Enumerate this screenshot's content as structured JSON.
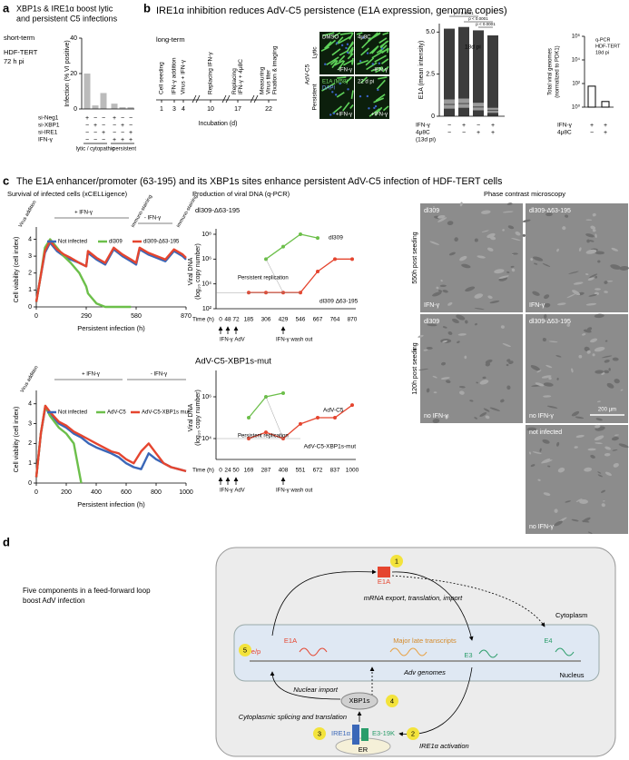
{
  "panel_labels": [
    "a",
    "b",
    "c",
    "d"
  ],
  "panel_a": {
    "title": [
      "XBP1s & IRE1α boost lytic",
      "and persistent C5 infections"
    ],
    "notes": [
      "short-term",
      "HDF-TERT",
      "72 h pi"
    ]
  },
  "panel_b": {
    "title": "IRE1α inhibition reduces AdV-C5 persistence (E1A expression, genome copies)",
    "timeline": {
      "label": "long-term",
      "days": [
        1,
        3,
        4,
        10,
        17,
        22
      ],
      "events": [
        [
          "Cell seeding"
        ],
        [
          "IFN-γ addition"
        ],
        [
          "Virus + IFN-γ"
        ],
        [
          "Replacing IFN-γ"
        ],
        [
          "Replacing",
          "IFN-γ + 4μ8C"
        ],
        [
          "Measuring",
          "Virus titer",
          "Fixation & imaging"
        ]
      ],
      "axis_label": "Incubation (d)"
    },
    "images": {
      "row_labels": [
        "Lytic",
        "Persistent"
      ],
      "virus": "AdV-C5",
      "tiles": [
        [
          "DMSO",
          "-IFN-γ"
        ],
        [
          "4μ8C",
          "-IFN-γ"
        ],
        [
          "E1A (M58)",
          "DAPI",
          "+IFN-γ"
        ],
        [
          "22 d pi",
          "+IFN-γ"
        ]
      ]
    }
  },
  "panel_c": {
    "title": "The E1A enhancer/promoter (63-195) and its XBP1s sites enhance persistent AdV-C5 infection of HDF-TERT cells",
    "headings": [
      "Survival of infected cells (xCELLigence)",
      "Production of viral DNA (q-PCR)",
      "Phase contrast microscopy"
    ],
    "microscopy": {
      "row_labels": [
        "550h post seeding",
        "120h post seeding"
      ],
      "tiles": [
        [
          "dl309",
          "IFN-γ"
        ],
        [
          "dl309-Δ63-195",
          "IFN-γ"
        ],
        [
          "dl309",
          "no IFN-γ"
        ],
        [
          "dl309-Δ63-195",
          "no IFN-γ"
        ],
        [
          "not infected",
          "no IFN-γ"
        ]
      ],
      "scale_bar": "200 µm"
    }
  },
  "panel_d": {
    "caption": [
      "Five components in a feed-forward loop",
      "boost AdV infection"
    ],
    "labels": [
      "E1A",
      "mRNA export, translation, import",
      "Cytoplasm",
      "e/p",
      "E1A",
      "Major late transcripts",
      "E3",
      "E4",
      "Adv genomes",
      "Nucleus",
      "Nuclear import",
      "XBP1s",
      "Cytoplasmic splicing and translation",
      "IRE1α",
      "E3-19K",
      "IRE1α activation",
      "ER"
    ],
    "steps": [
      "1",
      "2",
      "3",
      "4",
      "5"
    ]
  },
  "chart_data": [
    {
      "type": "bar",
      "ylabel": "Infection (% VI positive)",
      "values": [
        20,
        2,
        9,
        3,
        1,
        1
      ],
      "color": "#bbbbbb",
      "ylim": [
        0,
        40
      ],
      "yticks": [
        0,
        20,
        40
      ],
      "conditions": [
        {
          "label": "si-Neg1",
          "signs": [
            "+",
            "−",
            "−",
            "+",
            "−",
            "−"
          ]
        },
        {
          "label": "si-XBP1",
          "signs": [
            "−",
            "+",
            "−",
            "−",
            "+",
            "−"
          ]
        },
        {
          "label": "si-IRE1",
          "signs": [
            "−",
            "−",
            "+",
            "−",
            "−",
            "+"
          ]
        },
        {
          "label": "IFN-γ",
          "signs": [
            "−",
            "−",
            "−",
            "+",
            "+",
            "+"
          ]
        }
      ],
      "groups": [
        "lytic / cytopathic",
        "persistent"
      ]
    },
    {
      "type": "box",
      "ylabel": "E1A (mean intensity)",
      "median": [
        0.7,
        0.75,
        0.55,
        0.35
      ],
      "q1": [
        0.45,
        0.5,
        0.35,
        0.2
      ],
      "q3": [
        1.0,
        1.05,
        0.8,
        0.5
      ],
      "max": [
        5.2,
        5.3,
        5.1,
        4.8
      ],
      "ylim": [
        0,
        5.5
      ],
      "yticks": [
        0,
        2.5,
        {
          "value": 5,
          "label": "5.0"
        }
      ],
      "rows": [
        {
          "label": "IFN-γ",
          "signs": [
            "−",
            "+",
            "−",
            "+"
          ]
        },
        {
          "label": "4μ8C",
          "signs": [
            "−",
            "−",
            "+",
            "+"
          ]
        }
      ],
      "note": "(13d pi)",
      "annotation": "18d pi",
      "p_values": [
        "p < 0.0001",
        "p < 0.0001",
        "p < 0.0001"
      ]
    },
    {
      "type": "bar",
      "log_y": true,
      "ylabel": [
        "Total viral genomes",
        "(normalized to PDK1)"
      ],
      "values": [
        60,
        3
      ],
      "color": "#ffffff",
      "ylim": [
        1,
        1000000
      ],
      "yticks": [
        {
          "value": 1,
          "label": "10⁰"
        },
        {
          "value": 100,
          "label": "10²"
        },
        {
          "value": 10000,
          "label": "10⁴"
        },
        {
          "value": 1000000,
          "label": "10⁶"
        }
      ],
      "rows": [
        {
          "label": "IFN-γ",
          "signs": [
            "+",
            "+"
          ]
        },
        {
          "label": "4μ8C",
          "signs": [
            "−",
            "+"
          ]
        }
      ],
      "notes": [
        "q-PCR",
        "HDF-TERT",
        "18d pi"
      ]
    },
    {
      "type": "line",
      "ylabel": "Cell viability (cell index)",
      "xlabel": "Persistent infection (h)",
      "x": [
        0,
        20,
        50,
        80,
        120,
        160,
        200,
        250,
        290,
        300,
        350,
        400,
        450,
        500,
        550,
        580,
        600,
        650,
        700,
        750,
        800,
        850,
        870
      ],
      "series": [
        {
          "name": "Not infected",
          "color": "#3a67b8",
          "values": [
            0.3,
            1.5,
            3.2,
            3.8,
            3.3,
            3.0,
            2.8,
            2.6,
            2.4,
            3.2,
            2.8,
            2.5,
            3.4,
            3.0,
            2.7,
            2.5,
            3.4,
            3.1,
            2.9,
            2.7,
            3.3,
            3.0,
            2.8
          ]
        },
        {
          "name": "dl309",
          "color": "#6cbf4a",
          "values": [
            0.3,
            1.5,
            3.5,
            4.0,
            3.5,
            3.0,
            2.6,
            2.0,
            1.2,
            0.8,
            0.2,
            0,
            0,
            0,
            0,
            null,
            null,
            null,
            null,
            null,
            null,
            null,
            null
          ]
        },
        {
          "name": "dl309-Δ63-195",
          "color": "#e5452f",
          "values": [
            0.3,
            1.5,
            3.3,
            3.9,
            3.4,
            3.1,
            2.9,
            2.6,
            2.4,
            3.3,
            2.9,
            2.6,
            3.5,
            3.1,
            2.8,
            2.6,
            3.5,
            3.2,
            3.0,
            2.8,
            3.4,
            3.1,
            2.9
          ]
        }
      ],
      "xlim": [
        0,
        870
      ],
      "xticks": [
        0,
        290,
        580,
        870
      ],
      "ylim": [
        0,
        4.4
      ],
      "yticks": [
        0,
        1,
        2,
        3,
        4
      ],
      "annotations": [
        "Virus addition",
        "+ IFN-γ",
        "immuno-staining",
        "- IFN-γ",
        "immuno-staining"
      ]
    },
    {
      "type": "line",
      "subtitle": "dl309-Δ63-195",
      "ylabel": [
        "Viral DNA",
        "(log₁₀ copy number)"
      ],
      "xlabel": "Time (h)",
      "log_y": true,
      "categories": [
        0,
        48,
        72,
        185,
        306,
        429,
        546,
        667,
        764,
        870
      ],
      "series": [
        {
          "name": "dl309",
          "color": "#6cbf4a",
          "values": [
            null,
            null,
            null,
            null,
            1000000,
            10000000,
            100000000,
            50000000,
            null,
            null
          ]
        },
        {
          "name": "dl309 Δ63-195",
          "color": "#e5452f",
          "values": [
            null,
            null,
            null,
            2000,
            2000,
            2000,
            2000,
            100000,
            1000000,
            1000000
          ]
        }
      ],
      "ylim": [
        100,
        100000000
      ],
      "yticks": [
        {
          "value": 100,
          "label": "10²"
        },
        {
          "value": 10000,
          "label": "10⁴"
        },
        {
          "value": 1000000,
          "label": "10⁶"
        },
        {
          "value": 100000000,
          "label": "10⁸"
        }
      ],
      "annotations": [
        "Persistent replication",
        "IFN-γ AdV",
        "IFN-γ wash out"
      ]
    },
    {
      "type": "line",
      "ylabel": "Cell viability (cell index)",
      "xlabel": "Persistent infection (h)",
      "x": [
        0,
        30,
        60,
        90,
        150,
        200,
        250,
        300,
        350,
        400,
        500,
        550,
        600,
        650,
        700,
        750,
        800,
        850,
        900,
        950,
        1000
      ],
      "series": [
        {
          "name": "Not infected",
          "color": "#3a67b8",
          "values": [
            0.3,
            2.5,
            3.8,
            3.5,
            3.0,
            2.8,
            2.5,
            2.3,
            2.0,
            1.8,
            1.5,
            1.3,
            1.0,
            0.8,
            0.7,
            1.5,
            1.2,
            1.0,
            0.8,
            0.7,
            0.6
          ]
        },
        {
          "name": "AdV-C5",
          "color": "#6cbf4a",
          "values": [
            0.3,
            2.5,
            3.9,
            3.4,
            2.8,
            2.5,
            2.0,
            0,
            null,
            null,
            null,
            null,
            null,
            null,
            null,
            null,
            null,
            null,
            null,
            null,
            null
          ]
        },
        {
          "name": "AdV-C5-XBP1s mut",
          "color": "#e5452f",
          "values": [
            0.3,
            2.5,
            3.9,
            3.6,
            3.1,
            2.9,
            2.6,
            2.4,
            2.2,
            2.0,
            1.6,
            1.5,
            1.2,
            1.0,
            1.6,
            2.0,
            1.5,
            1.0,
            0.8,
            0.7,
            0.6
          ]
        }
      ],
      "xlim": [
        0,
        1000
      ],
      "xticks": [
        0,
        200,
        400,
        600,
        800,
        1000
      ],
      "ylim": [
        0,
        4.4
      ],
      "yticks": [
        0,
        1,
        2,
        3,
        4
      ],
      "annotations": [
        "Virus addition",
        "+ IFN-γ",
        "- IFN-γ"
      ]
    },
    {
      "type": "line",
      "subtitle": "AdV-C5-XBP1s-mut",
      "ylabel": [
        "Viral DNA",
        "(log₁₀ copy number)"
      ],
      "xlabel": "Time (h)",
      "log_y": true,
      "categories": [
        0,
        24,
        50,
        169,
        287,
        408,
        551,
        672,
        837,
        1000
      ],
      "series": [
        {
          "name": "AdV-C5",
          "color": "#6cbf4a",
          "values": [
            null,
            null,
            null,
            100000,
            1000000,
            1500000,
            null,
            null,
            null,
            null
          ]
        },
        {
          "name": "AdV-C5-XBP1s-mut",
          "color": "#e5452f",
          "values": [
            null,
            null,
            null,
            10000,
            20000,
            10000,
            50000,
            100000,
            100000,
            400000
          ]
        }
      ],
      "ylim": [
        1000,
        10000000
      ],
      "yticks": [
        {
          "value": 10000,
          "label": "10⁴"
        },
        {
          "value": 1000000,
          "label": "10⁶"
        }
      ],
      "annotations": [
        "Persistent replication",
        "IFN-γ AdV",
        "IFN-γ wash out"
      ]
    }
  ]
}
